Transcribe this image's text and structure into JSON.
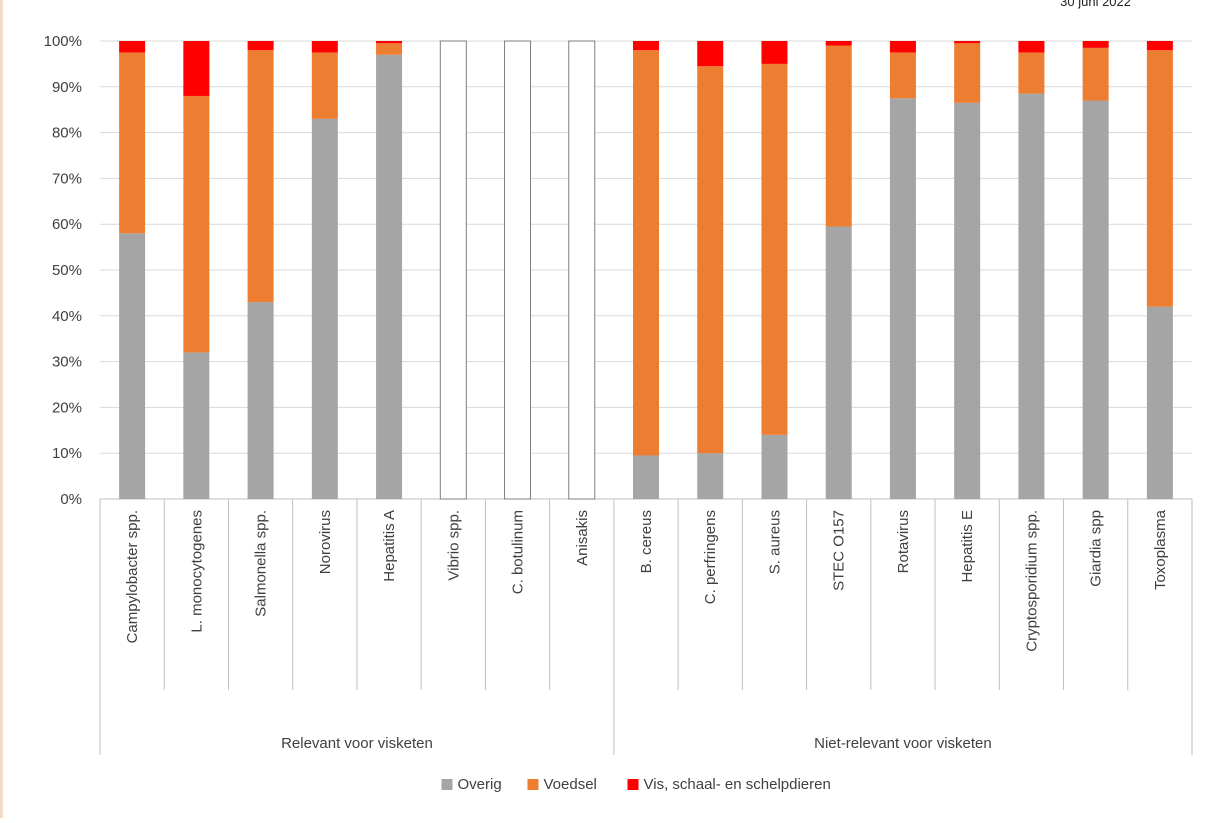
{
  "header": {
    "date": "30 juni 2022"
  },
  "colors": {
    "overig": "#a5a5a5",
    "voedsel": "#ed7d31",
    "vis": "#ff0000",
    "grid": "#d9d9d9",
    "axis": "#bfbfbf",
    "text": "#404040"
  },
  "chart_data": {
    "type": "bar",
    "stacked": true,
    "percent_stacked": true,
    "title": "",
    "xlabel": "",
    "ylabel": "",
    "ylim": [
      0,
      100
    ],
    "yticks": [
      "0%",
      "10%",
      "20%",
      "30%",
      "40%",
      "50%",
      "60%",
      "70%",
      "80%",
      "90%",
      "100%"
    ],
    "grid": true,
    "legend_position": "bottom",
    "categories": [
      "Campylobacter spp.",
      "L. monocytogenes",
      "Salmonella spp.",
      "Norovirus",
      "Hepatitis A",
      "Vibrio spp.",
      "C. botulinum",
      "Anisakis",
      "B. cereus",
      "C. perfringens",
      "S. aureus",
      "STEC O157",
      "Rotavirus",
      "Hepatitis E",
      "Cryptosporidium spp.",
      "Giardia spp",
      "Toxoplasma"
    ],
    "groups": [
      {
        "label": "Relevant voor visketen",
        "count": 8
      },
      {
        "label": "Niet-relevant voor visketen",
        "count": 9
      }
    ],
    "empty_bars": [
      "Vibrio spp.",
      "C. botulinum",
      "Anisakis"
    ],
    "series": [
      {
        "name": "Overig",
        "color": "#a5a5a5",
        "values": [
          58,
          32,
          43,
          83,
          97,
          0,
          0,
          0,
          9.5,
          10,
          14,
          59.5,
          87.5,
          86.5,
          88.5,
          87,
          42
        ]
      },
      {
        "name": "Voedsel",
        "color": "#ed7d31",
        "values": [
          39.5,
          56,
          55,
          14.5,
          2.5,
          0,
          0,
          0,
          88.5,
          84.5,
          81,
          39.5,
          10,
          13,
          9,
          11.5,
          56
        ]
      },
      {
        "name": "Vis, schaal- en schelpdieren",
        "color": "#ff0000",
        "values": [
          2.5,
          12,
          2,
          2.5,
          0.5,
          0,
          0,
          0,
          2,
          5.5,
          5,
          1,
          2.5,
          0.5,
          2.5,
          1.5,
          2
        ]
      }
    ]
  }
}
